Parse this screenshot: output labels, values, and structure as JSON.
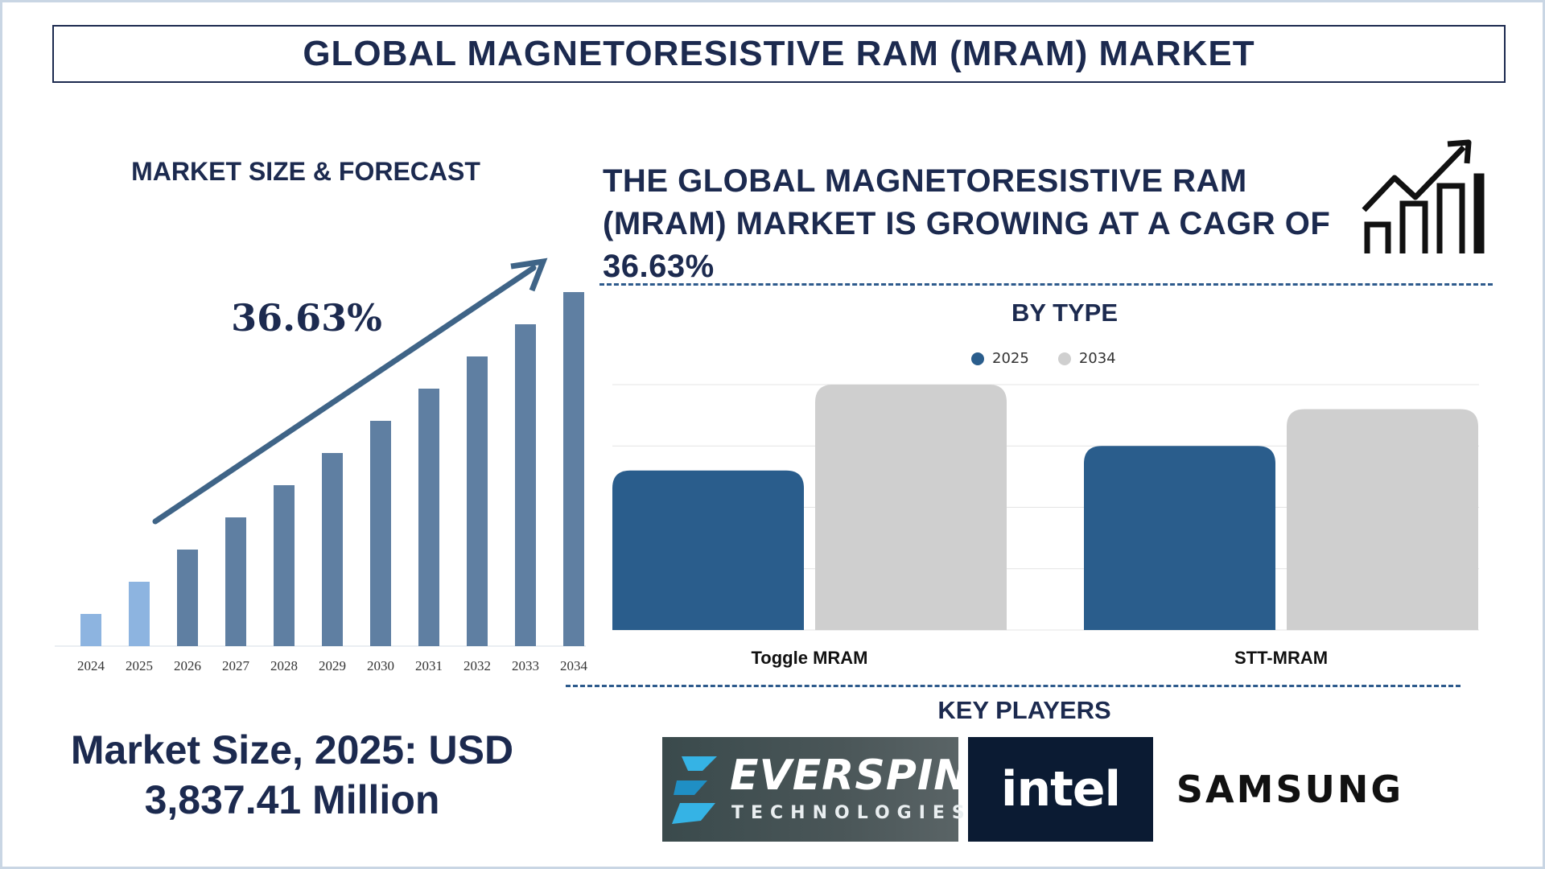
{
  "header": {
    "title": "GLOBAL MAGNETORESISTIVE RAM (MRAM) MARKET"
  },
  "forecast": {
    "title": "MARKET SIZE & FORECAST",
    "cagr_label": "36.63%"
  },
  "statement": {
    "text": "THE GLOBAL MAGNETORESISTIVE RAM (MRAM) MARKET IS GROWING AT A CAGR OF 36.63%"
  },
  "by_type": {
    "title": "BY TYPE"
  },
  "market_size": {
    "line1": "Market Size, 2025: USD",
    "line2": "3,837.41 Million"
  },
  "key_players": {
    "title": "KEY PLAYERS",
    "everspin_name": "EVERSPIN",
    "everspin_sub": "TECHNOLOGIES",
    "intel_name": "intel",
    "samsung_name": "SAMSUNG"
  },
  "colors": {
    "navy": "#1c2a4f",
    "bar_light": "#8db4e0",
    "bar_steel": "#5f7fa2",
    "arrow": "#3f6487",
    "series_2025": "#2a5d8c",
    "series_2034": "#cfcfcf"
  },
  "chart_data": [
    {
      "type": "bar",
      "title": "MARKET SIZE & FORECAST",
      "categories": [
        "2024",
        "2025",
        "2026",
        "2027",
        "2028",
        "2029",
        "2030",
        "2031",
        "2032",
        "2033",
        "2034"
      ],
      "values": [
        1,
        2,
        3,
        4,
        5,
        6,
        7,
        8,
        9,
        10,
        11
      ],
      "highlight": [
        "2024",
        "2025"
      ],
      "annotation": "36.63%",
      "grid": false
    },
    {
      "type": "bar",
      "title": "BY TYPE",
      "categories": [
        "Toggle MRAM",
        "STT-MRAM"
      ],
      "series": [
        {
          "name": "2025",
          "values": [
            2.6,
            3.0
          ]
        },
        {
          "name": "2034",
          "values": [
            4.0,
            3.6
          ]
        }
      ],
      "ylim": [
        0,
        4
      ],
      "grid": true,
      "legend": "top-center"
    }
  ]
}
